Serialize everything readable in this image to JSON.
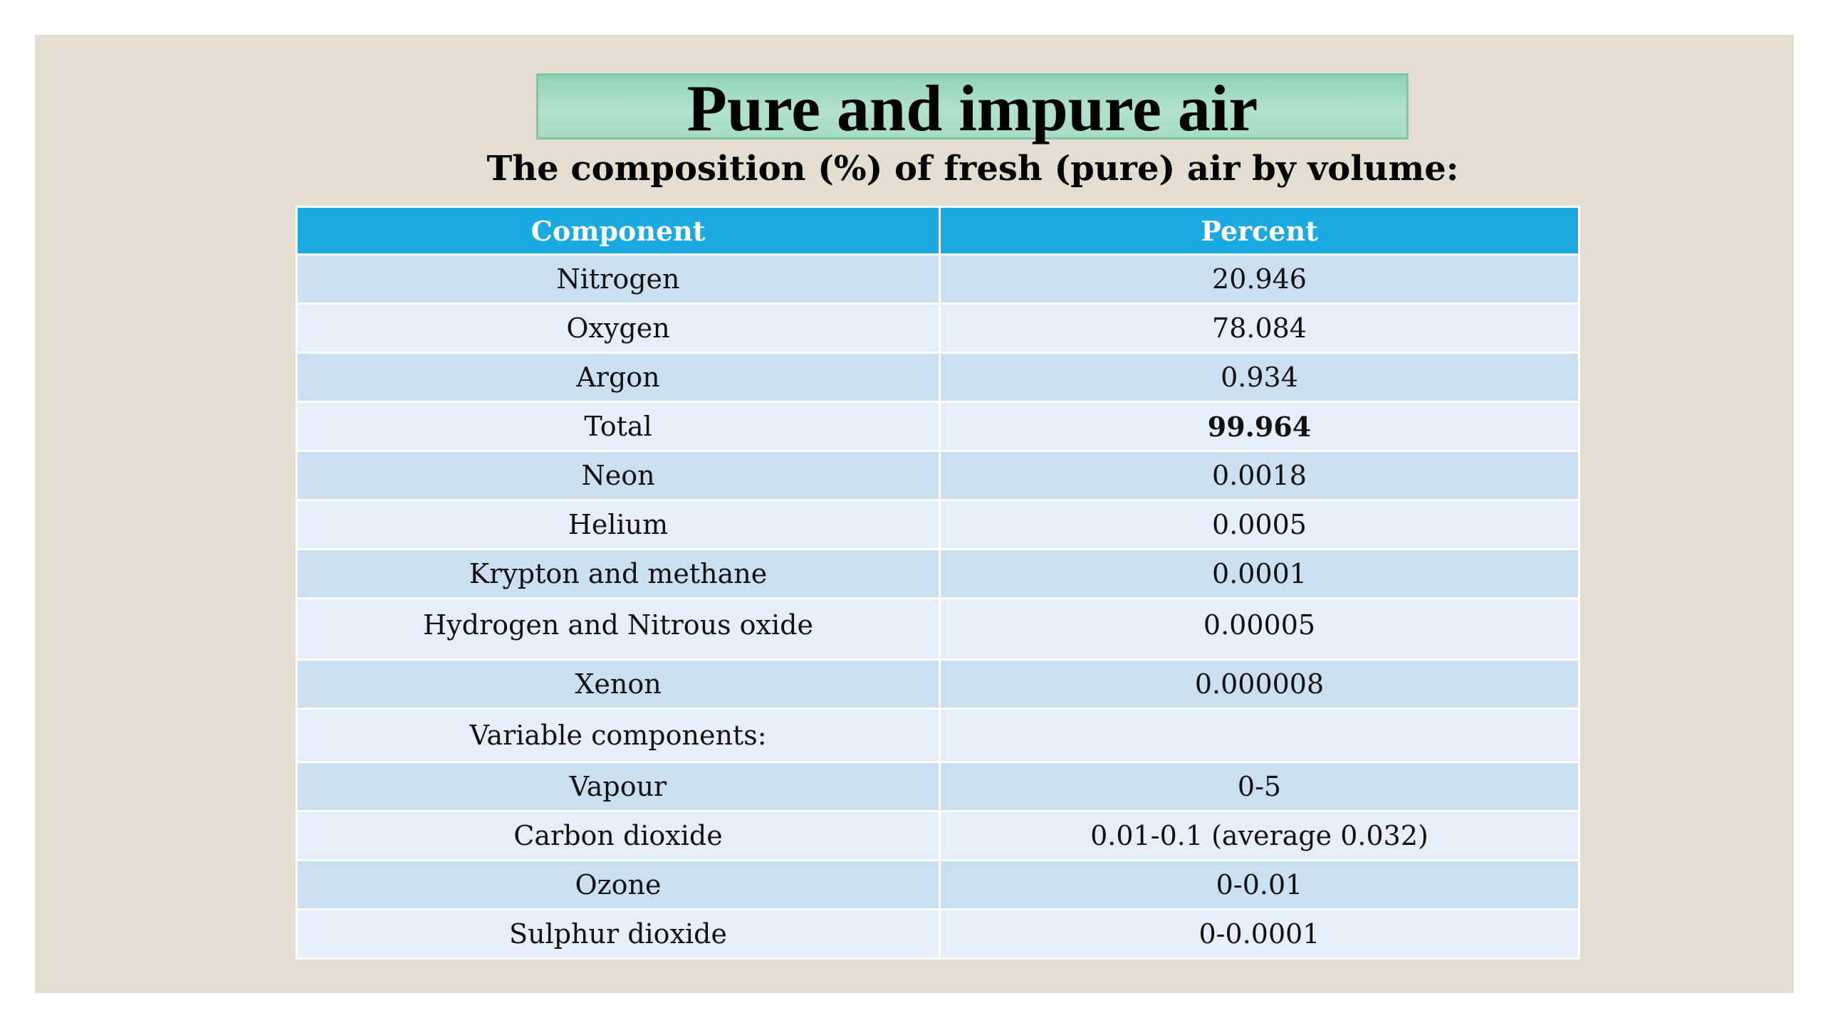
{
  "title": "Pure and impure air",
  "subtitle": "The composition (%) of fresh (pure) air by volume:",
  "table": {
    "headers": [
      "Component",
      "Percent"
    ],
    "rows": [
      {
        "component": "Nitrogen",
        "percent": "20.946"
      },
      {
        "component": "Oxygen",
        "percent": "78.084"
      },
      {
        "component": "Argon",
        "percent": "0.934"
      },
      {
        "component": "Total",
        "percent": "99.964"
      },
      {
        "component": "Neon",
        "percent": "0.0018"
      },
      {
        "component": "Helium",
        "percent": "0.0005"
      },
      {
        "component": "Krypton and methane",
        "percent": "0.0001"
      },
      {
        "component": "Hydrogen and Nitrous oxide",
        "percent": "0.00005"
      },
      {
        "component": "Xenon",
        "percent": "0.000008"
      },
      {
        "component": "Variable components:",
        "percent": ""
      },
      {
        "component": "Vapour",
        "percent": "0-5"
      },
      {
        "component": "Carbon dioxide",
        "percent": "0.01-0.1 (average 0.032)"
      },
      {
        "component": "Ozone",
        "percent": "0-0.01"
      },
      {
        "component": "Sulphur dioxide",
        "percent": "0-0.0001"
      }
    ]
  },
  "colors": {
    "header_blue": "#1ba9e1",
    "row_dark": "#cadff0",
    "row_light": "#e6eff9",
    "title_green": "#a7dcc3",
    "slide_background": "#e3ded1"
  }
}
